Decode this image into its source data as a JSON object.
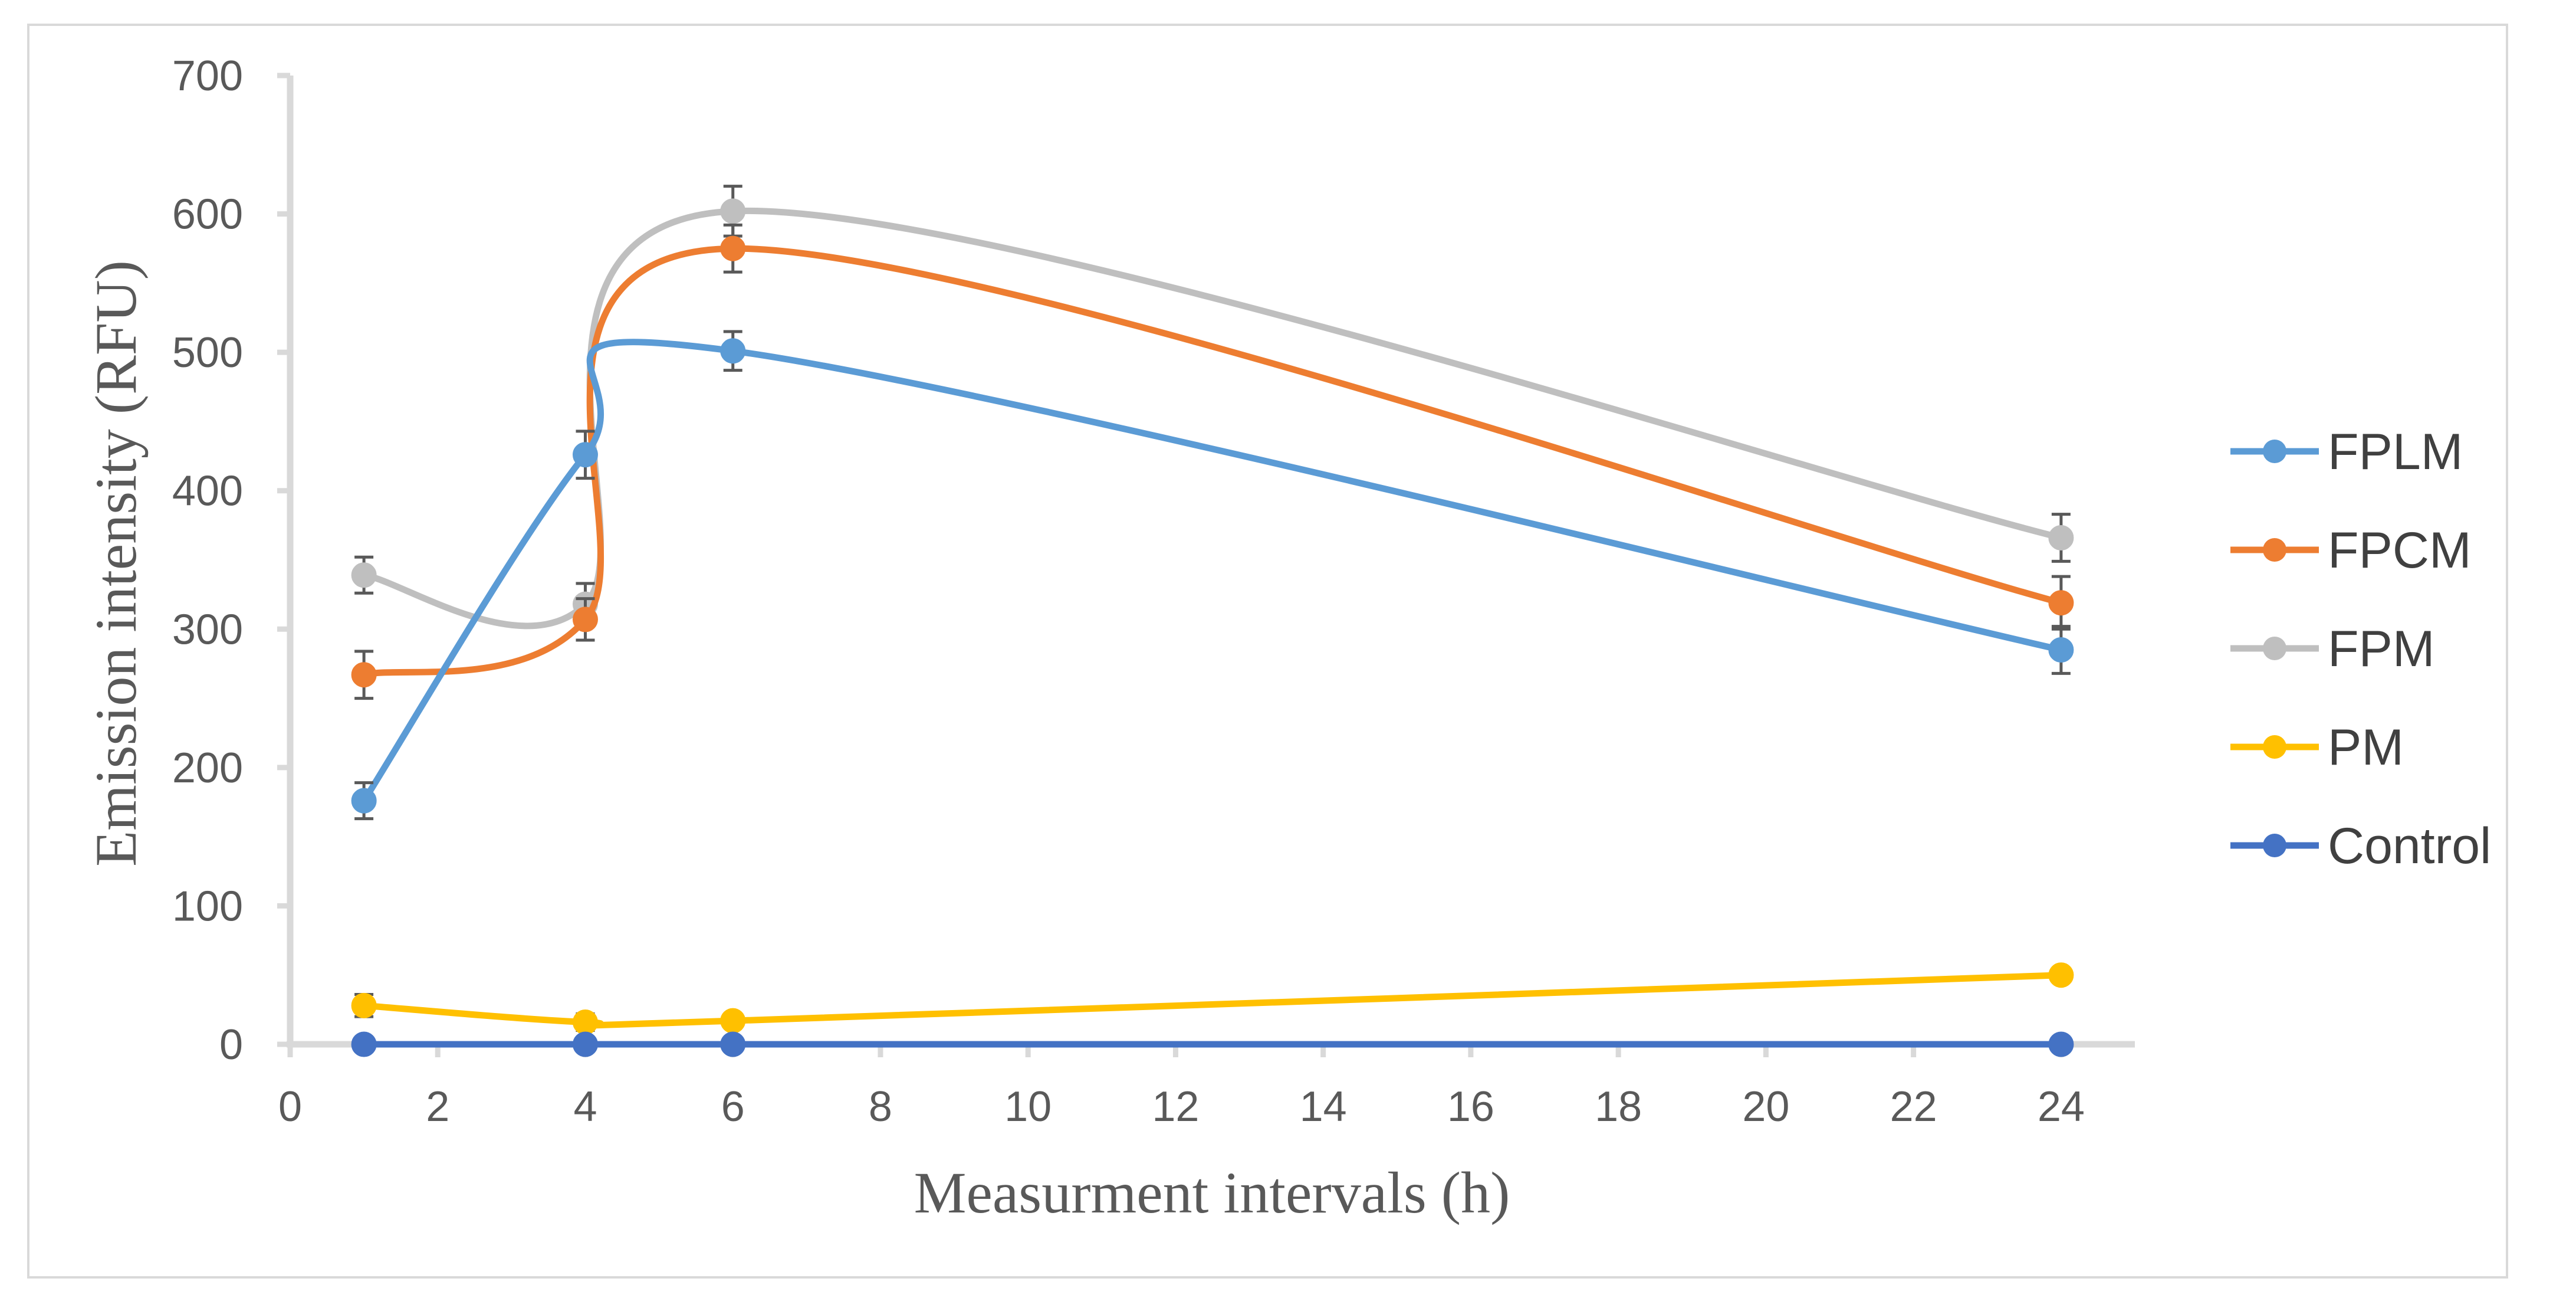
{
  "chart_data": {
    "type": "line",
    "title": "",
    "xlabel": "Measurment intervals (h)",
    "ylabel": "Emission intensity (RFU)",
    "xlim": [
      0,
      25
    ],
    "ylim": [
      0,
      700
    ],
    "xticks": [
      0,
      2,
      4,
      6,
      8,
      10,
      12,
      14,
      16,
      18,
      20,
      22,
      24
    ],
    "yticks": [
      0,
      100,
      200,
      300,
      400,
      500,
      600,
      700
    ],
    "x": [
      1,
      4,
      6,
      24
    ],
    "legend_position": "right",
    "series": [
      {
        "name": "FPLM",
        "color": "#5b9bd5",
        "values": [
          176,
          426,
          501,
          285
        ],
        "errors": [
          13,
          17,
          14,
          17
        ]
      },
      {
        "name": "FPCM",
        "color": "#ed7d31",
        "values": [
          267,
          307,
          575,
          319
        ],
        "errors": [
          17,
          15,
          17,
          19
        ]
      },
      {
        "name": "FPM",
        "color": "#bfbfbf",
        "values": [
          339,
          318,
          602,
          366
        ],
        "errors": [
          13,
          15,
          18,
          17
        ]
      },
      {
        "name": "PM",
        "color": "#ffc000",
        "values": [
          28,
          16,
          17,
          50
        ],
        "errors": [
          8,
          6,
          4,
          0
        ]
      },
      {
        "name": "Control",
        "color": "#4472c4",
        "values": [
          0,
          0,
          0,
          0
        ],
        "errors": [
          0,
          0,
          0,
          0
        ]
      }
    ]
  }
}
